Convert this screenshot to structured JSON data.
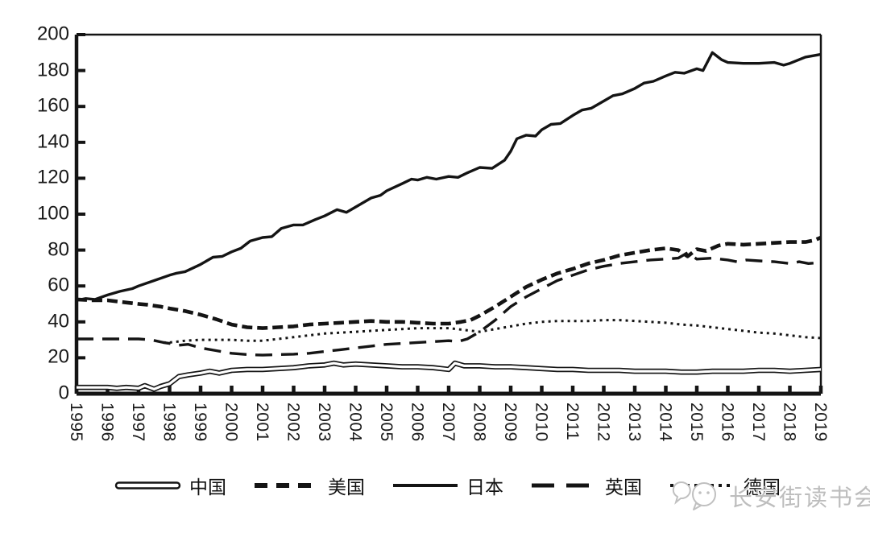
{
  "page": {
    "background": "#ffffff",
    "ink_color": "#141414"
  },
  "watermark": {
    "text": "长安街读书会",
    "color": "#bdbdbd",
    "icon": "speech-bubbles"
  },
  "axes": {
    "y_tick_labels": [
      "0",
      "20",
      "40",
      "60",
      "80",
      "100",
      "120",
      "140",
      "160",
      "180",
      "200"
    ],
    "x_tick_labels": [
      "1995",
      "1996",
      "1997",
      "1998",
      "1999",
      "2000",
      "2001",
      "2002",
      "2003",
      "2004",
      "2005",
      "2006",
      "2007",
      "2008",
      "2009",
      "2010",
      "2011",
      "2012",
      "2013",
      "2014",
      "2015",
      "2016",
      "2017",
      "2018",
      "2019"
    ]
  },
  "chart_data": {
    "type": "line",
    "title": "",
    "xlabel": "",
    "ylabel": "",
    "xlim": [
      1995,
      2019
    ],
    "ylim": [
      0,
      200
    ],
    "ytick_step": 20,
    "grid": false,
    "legend_position": "bottom",
    "line_color": "#141414",
    "series": [
      {
        "id": "china",
        "name": "中国",
        "line_style": "double-solid",
        "points": [
          [
            1995,
            3.5
          ],
          [
            1995.5,
            3.5
          ],
          [
            1996,
            3.5
          ],
          [
            1996.3,
            3
          ],
          [
            1996.6,
            3.5
          ],
          [
            1997,
            3
          ],
          [
            1997.2,
            4.5
          ],
          [
            1997.5,
            2.5
          ],
          [
            1997.7,
            4
          ],
          [
            1998,
            5.5
          ],
          [
            1998.3,
            9.5
          ],
          [
            1998.6,
            10.5
          ],
          [
            1999,
            11.5
          ],
          [
            1999.3,
            12.5
          ],
          [
            1999.6,
            11.5
          ],
          [
            2000,
            13
          ],
          [
            2000.5,
            13.5
          ],
          [
            2001,
            13.5
          ],
          [
            2001.5,
            14
          ],
          [
            2002,
            14.5
          ],
          [
            2002.5,
            15.5
          ],
          [
            2003,
            16
          ],
          [
            2003.3,
            17
          ],
          [
            2003.6,
            16
          ],
          [
            2004,
            16.5
          ],
          [
            2004.5,
            16
          ],
          [
            2005,
            15.5
          ],
          [
            2005.5,
            15
          ],
          [
            2006,
            15
          ],
          [
            2006.5,
            14.5
          ],
          [
            2007,
            13.5
          ],
          [
            2007.2,
            17
          ],
          [
            2007.5,
            15.5
          ],
          [
            2008,
            15.5
          ],
          [
            2008.5,
            15
          ],
          [
            2009,
            15
          ],
          [
            2009.5,
            14.5
          ],
          [
            2010,
            14
          ],
          [
            2010.5,
            13.5
          ],
          [
            2011,
            13.5
          ],
          [
            2011.5,
            13
          ],
          [
            2012,
            13
          ],
          [
            2012.5,
            13
          ],
          [
            2013,
            12.5
          ],
          [
            2013.5,
            12.5
          ],
          [
            2014,
            12.5
          ],
          [
            2014.5,
            12
          ],
          [
            2015,
            12
          ],
          [
            2015.5,
            12.5
          ],
          [
            2016,
            12.5
          ],
          [
            2016.5,
            12.5
          ],
          [
            2017,
            13
          ],
          [
            2017.5,
            13
          ],
          [
            2018,
            12.5
          ],
          [
            2018.5,
            13
          ],
          [
            2019,
            13.5
          ]
        ]
      },
      {
        "id": "usa",
        "name": "美国",
        "line_style": "dashed-thick",
        "points": [
          [
            1995,
            52.5
          ],
          [
            1995.5,
            52
          ],
          [
            1996,
            52
          ],
          [
            1996.5,
            51
          ],
          [
            1997,
            50
          ],
          [
            1997.3,
            49.5
          ],
          [
            1997.7,
            48.5
          ],
          [
            1998,
            47.5
          ],
          [
            1998.5,
            46
          ],
          [
            1999,
            44
          ],
          [
            1999.5,
            41.5
          ],
          [
            2000,
            38.5
          ],
          [
            2000.5,
            37
          ],
          [
            2001,
            36.5
          ],
          [
            2001.5,
            37
          ],
          [
            2002,
            37.5
          ],
          [
            2002.5,
            38.5
          ],
          [
            2003,
            39
          ],
          [
            2003.5,
            39.5
          ],
          [
            2004,
            40
          ],
          [
            2004.5,
            40.5
          ],
          [
            2005,
            40
          ],
          [
            2005.5,
            40
          ],
          [
            2006,
            39.5
          ],
          [
            2006.5,
            39
          ],
          [
            2007,
            39
          ],
          [
            2007.4,
            40
          ],
          [
            2007.7,
            41
          ],
          [
            2008,
            43.5
          ],
          [
            2008.5,
            48.5
          ],
          [
            2009,
            54
          ],
          [
            2009.5,
            59.5
          ],
          [
            2010,
            63.5
          ],
          [
            2010.5,
            67
          ],
          [
            2011,
            69.5
          ],
          [
            2011.5,
            72.5
          ],
          [
            2012,
            74.5
          ],
          [
            2012.5,
            77
          ],
          [
            2013,
            78.5
          ],
          [
            2013.5,
            80
          ],
          [
            2014,
            81
          ],
          [
            2014.4,
            80
          ],
          [
            2014.7,
            76.5
          ],
          [
            2015,
            80.5
          ],
          [
            2015.3,
            79.5
          ],
          [
            2015.7,
            82.5
          ],
          [
            2016,
            83.5
          ],
          [
            2016.5,
            83
          ],
          [
            2017,
            83.5
          ],
          [
            2017.5,
            84
          ],
          [
            2018,
            84.5
          ],
          [
            2018.5,
            84.5
          ],
          [
            2018.8,
            85.5
          ],
          [
            2019,
            87
          ]
        ]
      },
      {
        "id": "japan",
        "name": "日本",
        "line_style": "solid",
        "points": [
          [
            1995,
            52
          ],
          [
            1995.3,
            53
          ],
          [
            1995.6,
            52.5
          ],
          [
            1996,
            55
          ],
          [
            1996.4,
            57
          ],
          [
            1996.8,
            58.5
          ],
          [
            1997,
            60
          ],
          [
            1997.5,
            63
          ],
          [
            1998,
            66
          ],
          [
            1998.2,
            67
          ],
          [
            1998.5,
            68
          ],
          [
            1999,
            72
          ],
          [
            1999.4,
            76
          ],
          [
            1999.7,
            76.5
          ],
          [
            2000,
            79
          ],
          [
            2000.3,
            81
          ],
          [
            2000.6,
            85
          ],
          [
            2001,
            87
          ],
          [
            2001.3,
            87.5
          ],
          [
            2001.6,
            92
          ],
          [
            2002,
            94
          ],
          [
            2002.3,
            94
          ],
          [
            2002.7,
            97
          ],
          [
            2003,
            99
          ],
          [
            2003.4,
            102.5
          ],
          [
            2003.7,
            101
          ],
          [
            2004,
            104
          ],
          [
            2004.5,
            109
          ],
          [
            2004.8,
            110.5
          ],
          [
            2005,
            113
          ],
          [
            2005.5,
            117
          ],
          [
            2005.8,
            119.5
          ],
          [
            2006,
            119
          ],
          [
            2006.3,
            120.5
          ],
          [
            2006.6,
            119.5
          ],
          [
            2007,
            121
          ],
          [
            2007.3,
            120.5
          ],
          [
            2007.6,
            123
          ],
          [
            2008,
            126
          ],
          [
            2008.4,
            125.5
          ],
          [
            2008.8,
            130
          ],
          [
            2009,
            135
          ],
          [
            2009.2,
            142
          ],
          [
            2009.5,
            144
          ],
          [
            2009.8,
            143.5
          ],
          [
            2010,
            147
          ],
          [
            2010.3,
            150
          ],
          [
            2010.6,
            150.5
          ],
          [
            2011,
            155
          ],
          [
            2011.3,
            158
          ],
          [
            2011.6,
            159
          ],
          [
            2012,
            163
          ],
          [
            2012.3,
            166
          ],
          [
            2012.6,
            167
          ],
          [
            2013,
            170
          ],
          [
            2013.3,
            173
          ],
          [
            2013.6,
            174
          ],
          [
            2014,
            177
          ],
          [
            2014.3,
            179
          ],
          [
            2014.6,
            178.5
          ],
          [
            2015,
            181
          ],
          [
            2015.2,
            180
          ],
          [
            2015.5,
            190
          ],
          [
            2015.8,
            186
          ],
          [
            2016,
            184.5
          ],
          [
            2016.5,
            184
          ],
          [
            2017,
            184
          ],
          [
            2017.5,
            184.5
          ],
          [
            2017.8,
            183
          ],
          [
            2018,
            184
          ],
          [
            2018.5,
            187.5
          ],
          [
            2019,
            189
          ]
        ]
      },
      {
        "id": "uk",
        "name": "英国",
        "line_style": "long-dash",
        "points": [
          [
            1995,
            30.5
          ],
          [
            1996,
            30.5
          ],
          [
            1997,
            30.5
          ],
          [
            1997.4,
            30
          ],
          [
            1997.8,
            28.5
          ],
          [
            1998,
            28
          ],
          [
            1998.3,
            27
          ],
          [
            1998.6,
            27.5
          ],
          [
            1999,
            25.5
          ],
          [
            1999.5,
            24
          ],
          [
            2000,
            22.5
          ],
          [
            2000.5,
            21.8
          ],
          [
            2001,
            21.5
          ],
          [
            2001.5,
            21.8
          ],
          [
            2002,
            22
          ],
          [
            2002.5,
            22.5
          ],
          [
            2003,
            23.5
          ],
          [
            2003.5,
            24.5
          ],
          [
            2004,
            25.5
          ],
          [
            2004.5,
            26.5
          ],
          [
            2005,
            27.5
          ],
          [
            2005.5,
            28
          ],
          [
            2006,
            28.5
          ],
          [
            2006.5,
            29
          ],
          [
            2007,
            29.5
          ],
          [
            2007.3,
            29
          ],
          [
            2007.6,
            30.5
          ],
          [
            2008,
            34.5
          ],
          [
            2008.5,
            41
          ],
          [
            2009,
            48.5
          ],
          [
            2009.5,
            54
          ],
          [
            2010,
            58.5
          ],
          [
            2010.5,
            63
          ],
          [
            2011,
            66
          ],
          [
            2011.5,
            69
          ],
          [
            2012,
            71
          ],
          [
            2012.5,
            72.5
          ],
          [
            2013,
            73.5
          ],
          [
            2013.5,
            74.5
          ],
          [
            2014,
            75
          ],
          [
            2014.4,
            75.5
          ],
          [
            2014.7,
            78.5
          ],
          [
            2015,
            75
          ],
          [
            2015.5,
            75.5
          ],
          [
            2016,
            74.5
          ],
          [
            2016.3,
            73.5
          ],
          [
            2016.6,
            74.5
          ],
          [
            2017,
            74
          ],
          [
            2017.5,
            73.5
          ],
          [
            2018,
            72.5
          ],
          [
            2018.3,
            73.5
          ],
          [
            2018.6,
            72.5
          ],
          [
            2019,
            73
          ]
        ]
      },
      {
        "id": "germany",
        "name": "德国",
        "line_style": "dotted",
        "points": [
          [
            1997.8,
            28.5
          ],
          [
            1998,
            28.5
          ],
          [
            1998.5,
            29.5
          ],
          [
            1999,
            30
          ],
          [
            1999.5,
            30
          ],
          [
            2000,
            30
          ],
          [
            2000.5,
            29.5
          ],
          [
            2001,
            29.5
          ],
          [
            2001.5,
            30.5
          ],
          [
            2002,
            31.5
          ],
          [
            2002.5,
            32.5
          ],
          [
            2003,
            33.5
          ],
          [
            2003.5,
            34
          ],
          [
            2004,
            34.5
          ],
          [
            2004.5,
            35
          ],
          [
            2005,
            35.5
          ],
          [
            2005.5,
            36
          ],
          [
            2006,
            36.5
          ],
          [
            2006.5,
            36.5
          ],
          [
            2007,
            36.5
          ],
          [
            2007.5,
            35.5
          ],
          [
            2008,
            34.5
          ],
          [
            2008.5,
            36
          ],
          [
            2009,
            37.5
          ],
          [
            2009.5,
            39
          ],
          [
            2010,
            40
          ],
          [
            2010.5,
            40.5
          ],
          [
            2011,
            40.5
          ],
          [
            2011.5,
            40.5
          ],
          [
            2012,
            41
          ],
          [
            2012.5,
            41
          ],
          [
            2013,
            40.5
          ],
          [
            2013.5,
            40
          ],
          [
            2014,
            39.5
          ],
          [
            2014.5,
            38.5
          ],
          [
            2015,
            38
          ],
          [
            2015.5,
            37
          ],
          [
            2016,
            36
          ],
          [
            2016.5,
            35
          ],
          [
            2017,
            34
          ],
          [
            2017.5,
            33.5
          ],
          [
            2018,
            32.5
          ],
          [
            2018.5,
            31.5
          ],
          [
            2019,
            31
          ]
        ]
      }
    ]
  }
}
